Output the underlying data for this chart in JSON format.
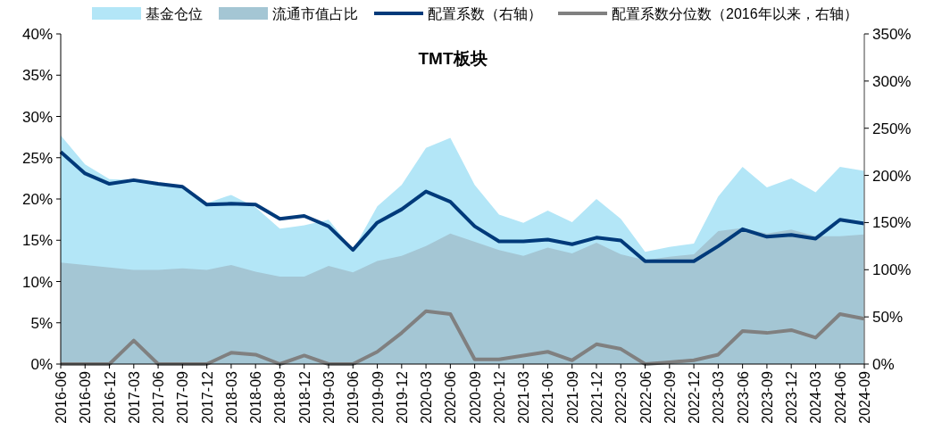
{
  "chart_data": {
    "type": "area",
    "title": "TMT板块",
    "categories": [
      "2016-06",
      "2016-09",
      "2016-12",
      "2017-03",
      "2017-06",
      "2017-09",
      "2017-12",
      "2018-03",
      "2018-06",
      "2018-09",
      "2018-12",
      "2019-03",
      "2019-06",
      "2019-09",
      "2019-12",
      "2020-03",
      "2020-06",
      "2020-09",
      "2020-12",
      "2021-03",
      "2021-06",
      "2021-09",
      "2021-12",
      "2022-03",
      "2022-06",
      "2022-09",
      "2022-12",
      "2023-03",
      "2023-06",
      "2023-09",
      "2023-12",
      "2024-03",
      "2024-06",
      "2024-09"
    ],
    "series": [
      {
        "name": "基金仓位",
        "color": "#b3e6f7",
        "values": [
          27.7,
          24.2,
          22.4,
          22.3,
          21.9,
          21.6,
          19.5,
          20.5,
          19.0,
          16.4,
          16.8,
          17.5,
          13.8,
          19.1,
          21.7,
          26.2,
          27.4,
          21.7,
          18.1,
          17.1,
          18.6,
          17.2,
          20.0,
          17.6,
          13.6,
          14.2,
          14.6,
          20.3,
          23.9,
          21.4,
          22.5,
          20.8,
          23.9,
          23.4
        ]
      },
      {
        "name": "流通市值占比",
        "color": "#a4c6d4",
        "values": [
          12.3,
          12.0,
          11.7,
          11.4,
          11.4,
          11.6,
          11.4,
          12.0,
          11.2,
          10.6,
          10.6,
          11.9,
          11.1,
          12.5,
          13.1,
          14.3,
          15.8,
          14.8,
          13.8,
          13.1,
          14.1,
          13.4,
          14.7,
          13.3,
          12.6,
          13.0,
          13.3,
          16.1,
          16.5,
          15.8,
          16.3,
          15.5,
          15.5,
          15.7
        ]
      },
      {
        "name": "配置系数（右轴）",
        "type": "line",
        "axis": "y2",
        "color": "#003a7a",
        "values": [
          225,
          202,
          191,
          195,
          191,
          188,
          169,
          170,
          169,
          154,
          157,
          146,
          121,
          150,
          164,
          183,
          172,
          146,
          130,
          130,
          132,
          127,
          134,
          131,
          109,
          109,
          109,
          125,
          143,
          135,
          137,
          133,
          153,
          149
        ]
      },
      {
        "name": "配置系数分位数（2016年以来，右轴）",
        "type": "line",
        "axis": "y2",
        "color": "#808080",
        "values": [
          0,
          0,
          0,
          25,
          0,
          0,
          0,
          12,
          10,
          0,
          9,
          0,
          0,
          13,
          33,
          56,
          53,
          5,
          5,
          9,
          13,
          4,
          21,
          16,
          0,
          2,
          4,
          10,
          35,
          33,
          36,
          28,
          53,
          48
        ]
      }
    ],
    "ylim": [
      0,
      40
    ],
    "yticks": [
      {
        "value": 0,
        "label": "0%"
      },
      {
        "value": 5,
        "label": "5%"
      },
      {
        "value": 10,
        "label": "10%"
      },
      {
        "value": 15,
        "label": "15%"
      },
      {
        "value": 20,
        "label": "20%"
      },
      {
        "value": 25,
        "label": "25%"
      },
      {
        "value": 30,
        "label": "30%"
      },
      {
        "value": 35,
        "label": "35%"
      },
      {
        "value": 40,
        "label": "40%"
      }
    ],
    "y2lim": [
      0,
      350
    ],
    "y2ticks": [
      {
        "value": 0,
        "label": "0%"
      },
      {
        "value": 50,
        "label": "50%"
      },
      {
        "value": 100,
        "label": "100%"
      },
      {
        "value": 150,
        "label": "150%"
      },
      {
        "value": 200,
        "label": "200%"
      },
      {
        "value": 250,
        "label": "250%"
      },
      {
        "value": 300,
        "label": "300%"
      },
      {
        "value": 350,
        "label": "350%"
      }
    ],
    "legend": "top",
    "grid": false
  }
}
